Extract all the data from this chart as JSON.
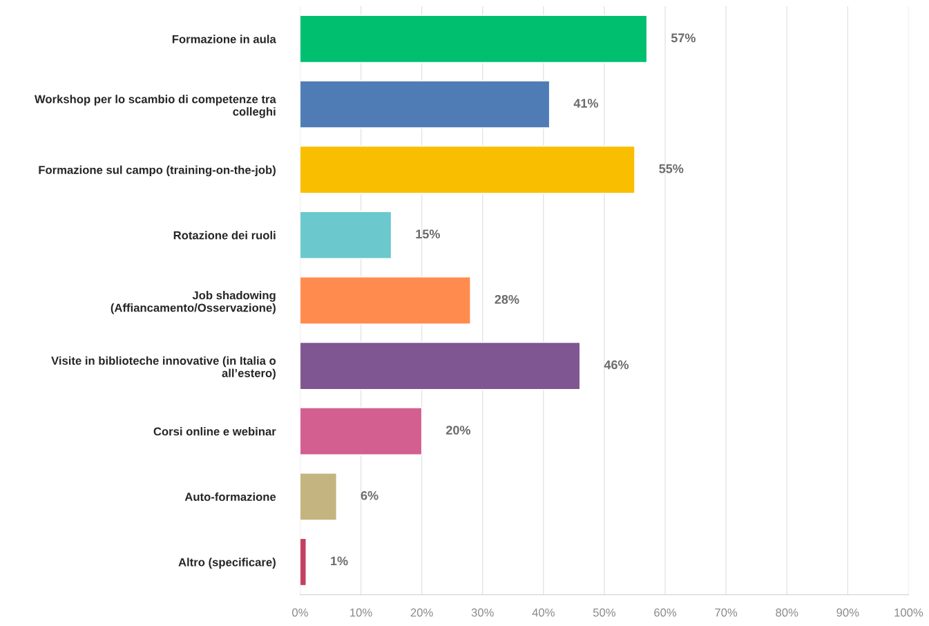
{
  "chart_data": {
    "type": "bar",
    "orientation": "horizontal",
    "categories": [
      "Formazione in aula",
      "Workshop per lo scambio di competenze tra\ncolleghi",
      "Formazione sul campo (training-on-the-job)",
      "Rotazione dei ruoli",
      "Job shadowing\n(Affiancamento/Osservazione)",
      "Visite in biblioteche innovative (in Italia o\nall’estero)",
      "Corsi online e webinar",
      "Auto-formazione",
      "Altro (specificare)"
    ],
    "values": [
      57,
      41,
      55,
      15,
      28,
      46,
      20,
      6,
      1
    ],
    "colors": [
      "#00bf6f",
      "#507cb6",
      "#f9be00",
      "#6bc8cd",
      "#ff8b4f",
      "#7f5691",
      "#d25f90",
      "#c4b47f",
      "#c4405e"
    ],
    "value_labels": [
      "57%",
      "41%",
      "55%",
      "15%",
      "28%",
      "46%",
      "20%",
      "6%",
      "1%"
    ],
    "xlim": [
      0,
      100
    ],
    "xticks": [
      {
        "value": 0,
        "label": "0%"
      },
      {
        "value": 10,
        "label": "10%"
      },
      {
        "value": 20,
        "label": "20%"
      },
      {
        "value": 30,
        "label": "30%"
      },
      {
        "value": 40,
        "label": "40%"
      },
      {
        "value": 50,
        "label": "50%"
      },
      {
        "value": 60,
        "label": "60%"
      },
      {
        "value": 70,
        "label": "70%"
      },
      {
        "value": 80,
        "label": "80%"
      },
      {
        "value": 90,
        "label": "90%"
      },
      {
        "value": 100,
        "label": "100%"
      }
    ],
    "grid": "x",
    "legend": false
  }
}
